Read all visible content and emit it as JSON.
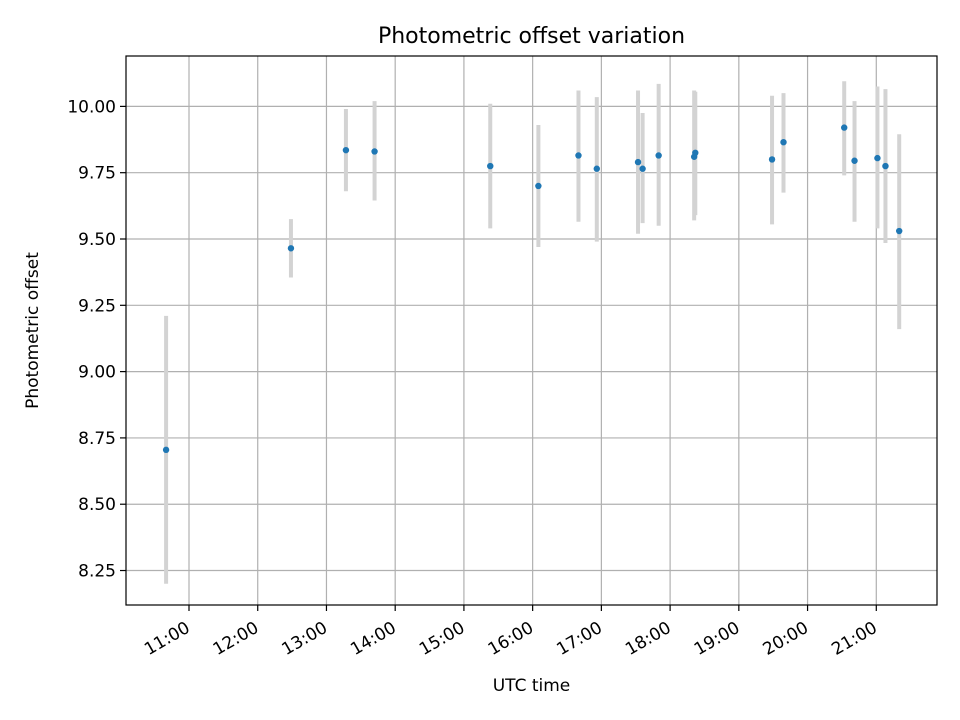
{
  "chart_data": {
    "type": "scatter",
    "title": "Photometric offset variation",
    "xlabel": "UTC time",
    "ylabel": "Photometric offset",
    "x_range": [
      "10:05",
      "21:53"
    ],
    "ylim": [
      8.12,
      10.19
    ],
    "grid": true,
    "x_ticks": [
      "11:00",
      "12:00",
      "13:00",
      "14:00",
      "15:00",
      "16:00",
      "17:00",
      "18:00",
      "19:00",
      "20:00",
      "21:00"
    ],
    "y_ticks": [
      8.25,
      8.5,
      8.75,
      9.0,
      9.25,
      9.5,
      9.75,
      10.0
    ],
    "y_tick_labels": [
      "8.25",
      "8.50",
      "8.75",
      "9.00",
      "9.25",
      "9.50",
      "9.75",
      "10.00"
    ],
    "colors": {
      "points": "#1f77b4",
      "error_bars": "#d3d3d3",
      "grid": "#b0b0b0"
    },
    "points": [
      {
        "x": "10:40",
        "y": 8.705,
        "low": 8.2,
        "high": 9.21
      },
      {
        "x": "12:29",
        "y": 9.465,
        "low": 9.355,
        "high": 9.575
      },
      {
        "x": "13:17",
        "y": 9.835,
        "low": 9.68,
        "high": 9.99
      },
      {
        "x": "13:42",
        "y": 9.83,
        "low": 9.645,
        "high": 10.02
      },
      {
        "x": "15:23",
        "y": 9.775,
        "low": 9.54,
        "high": 10.01
      },
      {
        "x": "16:05",
        "y": 9.7,
        "low": 9.47,
        "high": 9.93
      },
      {
        "x": "16:40",
        "y": 9.815,
        "low": 9.565,
        "high": 10.06
      },
      {
        "x": "16:56",
        "y": 9.765,
        "low": 9.49,
        "high": 10.035
      },
      {
        "x": "17:32",
        "y": 9.79,
        "low": 9.52,
        "high": 10.06
      },
      {
        "x": "17:36",
        "y": 9.765,
        "low": 9.56,
        "high": 9.975
      },
      {
        "x": "17:50",
        "y": 9.815,
        "low": 9.55,
        "high": 10.085
      },
      {
        "x": "18:21",
        "y": 9.81,
        "low": 9.57,
        "high": 10.06
      },
      {
        "x": "18:22",
        "y": 9.825,
        "low": 9.59,
        "high": 10.055
      },
      {
        "x": "19:29",
        "y": 9.8,
        "low": 9.555,
        "high": 10.04
      },
      {
        "x": "19:39",
        "y": 9.865,
        "low": 9.675,
        "high": 10.05
      },
      {
        "x": "20:32",
        "y": 9.92,
        "low": 9.74,
        "high": 10.095
      },
      {
        "x": "20:41",
        "y": 9.795,
        "low": 9.565,
        "high": 10.02
      },
      {
        "x": "21:01",
        "y": 9.805,
        "low": 9.54,
        "high": 10.075
      },
      {
        "x": "21:08",
        "y": 9.775,
        "low": 9.485,
        "high": 10.065
      },
      {
        "x": "21:20",
        "y": 9.53,
        "low": 9.16,
        "high": 9.895
      }
    ]
  }
}
